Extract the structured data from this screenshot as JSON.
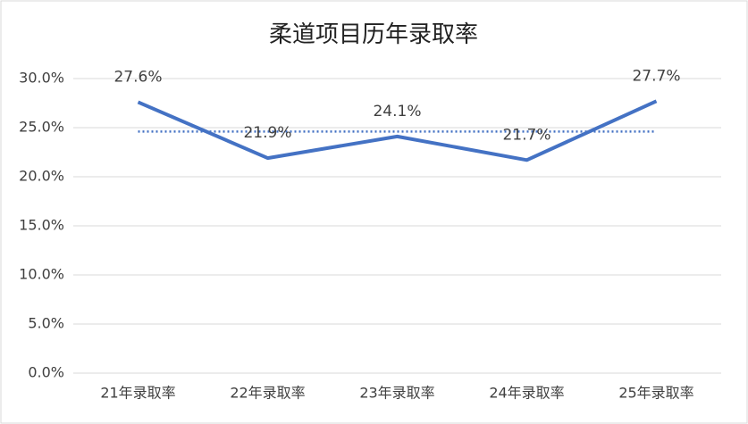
{
  "chart_data": {
    "type": "line",
    "title": "柔道项目历年录取率",
    "categories": [
      "21年录取率",
      "22年录取率",
      "23年录取率",
      "24年录取率",
      "25年录取率"
    ],
    "values": [
      27.6,
      21.9,
      24.1,
      21.7,
      27.7
    ],
    "value_labels": [
      "27.6%",
      "21.9%",
      "24.1%",
      "21.7%",
      "27.7%"
    ],
    "average_line": 24.6,
    "color": "#4472c4",
    "ylim": [
      0,
      30
    ],
    "yticks": [
      {
        "value": 0,
        "label": "0.0%"
      },
      {
        "value": 5,
        "label": "5.0%"
      },
      {
        "value": 10,
        "label": "10.0%"
      },
      {
        "value": 15,
        "label": "15.0%"
      },
      {
        "value": 20,
        "label": "20.0%"
      },
      {
        "value": 25,
        "label": "25.0%"
      },
      {
        "value": 30,
        "label": "30.0%"
      }
    ],
    "grid": true
  }
}
